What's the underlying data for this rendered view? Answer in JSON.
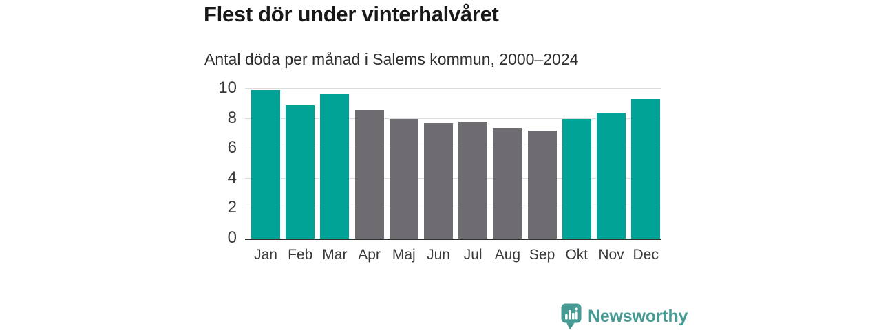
{
  "header": {
    "title": "Flest dör under vinterhalvåret",
    "subtitle": "Antal döda per månad i Salems kommun, 2000–2024"
  },
  "chart_data": {
    "type": "bar",
    "title": "Flest dör under vinterhalvåret",
    "subtitle": "Antal döda per månad i Salems kommun, 2000–2024",
    "categories": [
      "Jan",
      "Feb",
      "Mar",
      "Apr",
      "Maj",
      "Jun",
      "Jul",
      "Aug",
      "Sep",
      "Okt",
      "Nov",
      "Dec"
    ],
    "values": [
      9.9,
      8.9,
      9.7,
      8.6,
      8.0,
      7.7,
      7.8,
      7.4,
      7.2,
      8.0,
      8.4,
      9.3
    ],
    "bar_colors": [
      "#00a396",
      "#00a396",
      "#00a396",
      "#6e6b71",
      "#6e6b71",
      "#6e6b71",
      "#6e6b71",
      "#6e6b71",
      "#6e6b71",
      "#00a396",
      "#00a396",
      "#00a396"
    ],
    "highlight_color": "#00a396",
    "muted_color": "#6e6b71",
    "xlabel": "",
    "ylabel": "",
    "ylim": [
      0,
      10
    ],
    "yticks": [
      0,
      2,
      4,
      6,
      8,
      10
    ],
    "grid": true,
    "legend": "none"
  },
  "footer": {
    "brand_name": "Newsworthy",
    "brand_color": "#459a94",
    "logo_icon": "newsworthy-bar-chart-bubble-icon"
  }
}
